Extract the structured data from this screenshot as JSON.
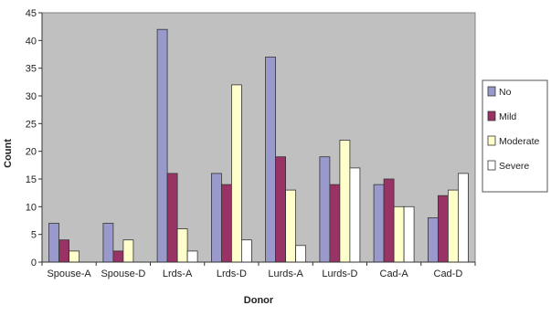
{
  "chart_data": {
    "type": "bar",
    "title": "",
    "xlabel": "Donor",
    "ylabel": "Count",
    "ylim": [
      0,
      45
    ],
    "ytick_step": 5,
    "grid": false,
    "legend_position": "right",
    "plot_background": "#c0c0c0",
    "categories": [
      "Spouse-A",
      "Spouse-D",
      "Lrds-A",
      "Lrds-D",
      "Lurds-A",
      "Lurds-D",
      "Cad-A",
      "Cad-D"
    ],
    "series": [
      {
        "name": "No",
        "color": "#9999cc",
        "values": [
          7,
          7,
          42,
          16,
          37,
          19,
          14,
          8
        ]
      },
      {
        "name": "Mild",
        "color": "#993366",
        "values": [
          4,
          2,
          16,
          14,
          19,
          14,
          15,
          12
        ]
      },
      {
        "name": "Moderate",
        "color": "#ffffcc",
        "values": [
          2,
          4,
          6,
          32,
          13,
          22,
          10,
          13
        ]
      },
      {
        "name": "Severe",
        "color": "#ffffff",
        "values": [
          0,
          0,
          2,
          4,
          3,
          17,
          10,
          16
        ]
      }
    ]
  }
}
